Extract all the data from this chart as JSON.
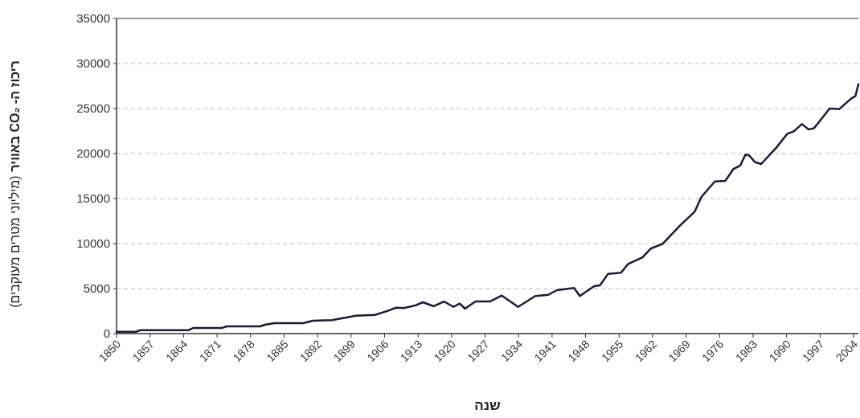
{
  "chart_data": {
    "type": "line",
    "xlabel": "**שנה**",
    "ylabel": "**ריכוז ה- CO₂ באוויר** (מיליוני מטרים מעוקבים)",
    "xlim": [
      1850,
      2005
    ],
    "ylim": [
      0,
      35000
    ],
    "xticks": [
      1850,
      1857,
      1864,
      1871,
      1878,
      1885,
      1892,
      1899,
      1906,
      1913,
      1920,
      1927,
      1934,
      1941,
      1948,
      1955,
      1962,
      1969,
      1976,
      1983,
      1990,
      1997,
      2004
    ],
    "yticks": [
      0,
      5000,
      10000,
      15000,
      20000,
      25000,
      30000,
      35000
    ],
    "grid": "y",
    "marker": "none",
    "line_style": "solid",
    "series": [
      {
        "color": "#1a1a3a",
        "x": [
          1850,
          1854,
          1855,
          1865,
          1866,
          1872,
          1873,
          1880,
          1881,
          1883,
          1889,
          1891,
          1895,
          1898,
          1900,
          1904,
          1906.7,
          1908.4,
          1910,
          1912.4,
          1914,
          1916.3,
          1918.4,
          1920.4,
          1921.7,
          1922.8,
          1925,
          1928,
          1930.5,
          1933.9,
          1937.5,
          1940.2,
          1942,
          1945.6,
          1946.8,
          1949.8,
          1951,
          1952.7,
          1955.4,
          1956.9,
          1959.9,
          1961.6,
          1964.1,
          1967.8,
          1970.8,
          1972.2,
          1975,
          1977.2,
          1978.9,
          1980.3,
          1981.4,
          1982.2,
          1983.4,
          1984.7,
          1987.9,
          1990.1,
          1991.5,
          1993.2,
          1994.6,
          1995.7,
          1999,
          2001,
          2003.5,
          2004.4,
          2005
        ],
        "values": [
          200,
          200,
          380,
          380,
          620,
          620,
          800,
          800,
          980,
          1160,
          1160,
          1430,
          1500,
          1780,
          1990,
          2080,
          2530,
          2880,
          2830,
          3120,
          3480,
          3040,
          3570,
          2970,
          3330,
          2770,
          3570,
          3570,
          4220,
          2970,
          4170,
          4310,
          4820,
          5060,
          4170,
          5270,
          5360,
          6640,
          6760,
          7740,
          8480,
          9440,
          9970,
          12050,
          13540,
          15180,
          16900,
          16960,
          18300,
          18660,
          19880,
          19790,
          19040,
          18840,
          20680,
          22170,
          22470,
          23270,
          22680,
          22800,
          25000,
          24940,
          26100,
          26400,
          27700
        ]
      }
    ]
  }
}
